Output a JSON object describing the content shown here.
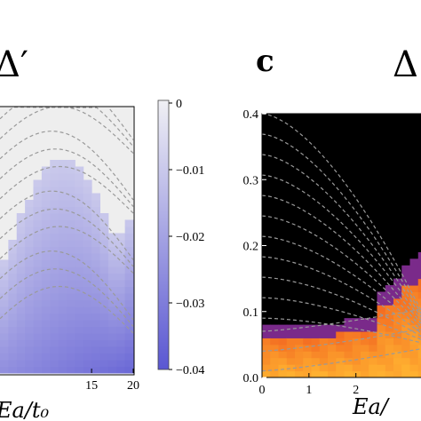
{
  "chart_data": [
    {
      "type": "heatmap",
      "panel": "",
      "title": "Δ′",
      "xlabel": "Ea/t₀",
      "x_ticks": [
        "15",
        "20"
      ],
      "xlim": [
        4,
        20
      ],
      "ylim": [
        0.0,
        0.4
      ],
      "colorbar": {
        "ticks": [
          "0",
          "−0.01",
          "−0.02",
          "−0.03",
          "−0.04"
        ],
        "range": [
          -0.04,
          0
        ],
        "colors": [
          "#f0f0f4",
          "#5a57d2"
        ]
      },
      "empty_color": "#eeeeee",
      "grid": false
    },
    {
      "type": "heatmap",
      "panel": "c",
      "title": "Δ",
      "xlabel": "Ea/",
      "x_ticks": [
        "0",
        "1",
        "2"
      ],
      "y_ticks": [
        "0.0",
        "0.1",
        "0.2",
        "0.3",
        "0.4"
      ],
      "xlim": [
        0,
        3.5
      ],
      "ylim": [
        0.0,
        0.4
      ],
      "empty_color": "#000000",
      "colors": [
        "#7a2a8a",
        "#f05a1e",
        "#ffb030"
      ],
      "grid": false
    }
  ]
}
